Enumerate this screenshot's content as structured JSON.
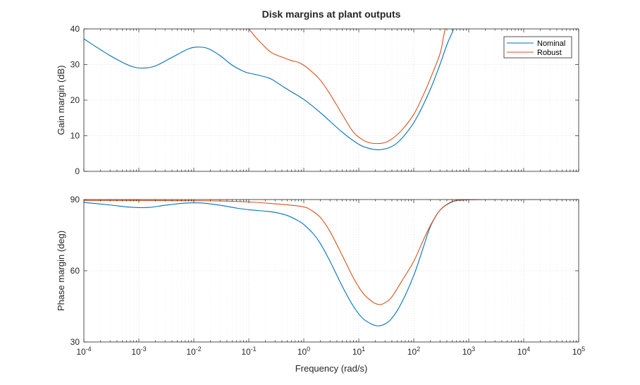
{
  "chart_data": {
    "type": "line",
    "title": "Disk margins at plant outputs",
    "xlabel": "Frequency (rad/s)",
    "xscale": "log",
    "xlim": [
      0.0001,
      100000
    ],
    "grid": true,
    "legend": {
      "location": "top-right",
      "entries": [
        "Nominal",
        "Robust"
      ]
    },
    "series_colors": {
      "Nominal": "#0072BD",
      "Robust": "#D95319"
    },
    "x_tick_labels": [
      {
        "base": "10",
        "exp": "-4"
      },
      {
        "base": "10",
        "exp": "-3"
      },
      {
        "base": "10",
        "exp": "-2"
      },
      {
        "base": "10",
        "exp": "-1"
      },
      {
        "base": "10",
        "exp": "0"
      },
      {
        "base": "10",
        "exp": "1"
      },
      {
        "base": "10",
        "exp": "2"
      },
      {
        "base": "10",
        "exp": "3"
      },
      {
        "base": "10",
        "exp": "4"
      },
      {
        "base": "10",
        "exp": "5"
      }
    ],
    "subplots": [
      {
        "ylabel": "Gain margin (dB)",
        "ylim": [
          0,
          40
        ],
        "yticks": [
          0,
          10,
          20,
          30,
          40
        ],
        "series": [
          {
            "name": "Nominal",
            "x": [
              0.0001,
              0.0003,
              0.0007,
              0.0012,
              0.002,
              0.004,
              0.008,
              0.012,
              0.018,
              0.03,
              0.05,
              0.08,
              0.1,
              0.15,
              0.25,
              0.4,
              0.6,
              1,
              2,
              5,
              10,
              15,
              20,
              25,
              35,
              50,
              80,
              120,
              200,
              300,
              400,
              500,
              600
            ],
            "y": [
              37.2,
              32.5,
              29.6,
              29.0,
              29.6,
              32.0,
              34.4,
              34.9,
              34.5,
              32.5,
              29.8,
              28.1,
              27.6,
              27.0,
              26.0,
              24.0,
              22.3,
              20.2,
              16.5,
              11.0,
              7.6,
              6.5,
              6.1,
              6.1,
              6.6,
              8.0,
              11.5,
              15.8,
              23.0,
              30.0,
              35.5,
              39.0,
              42.0
            ]
          },
          {
            "name": "Robust",
            "x": [
              0.1,
              0.15,
              0.25,
              0.4,
              0.6,
              0.8,
              1,
              1.5,
              2,
              3,
              5,
              8,
              12,
              16,
              22,
              30,
              40,
              60,
              100,
              150,
              200,
              300,
              350,
              400
            ],
            "y": [
              40.0,
              36.8,
              33.5,
              32.1,
              31.1,
              30.6,
              29.8,
              27.6,
              25.6,
              21.7,
              16.0,
              11.0,
              8.8,
              8.0,
              7.8,
              8.1,
              9.1,
              11.5,
              16.0,
              21.5,
              26.0,
              33.0,
              38.0,
              42.0
            ]
          }
        ]
      },
      {
        "ylabel": "Phase margin (deg)",
        "ylim": [
          30,
          90
        ],
        "yticks": [
          30,
          60,
          90
        ],
        "series": [
          {
            "name": "Nominal",
            "x": [
              0.0001,
              0.0003,
              0.0006,
              0.001,
              0.0016,
              0.003,
              0.006,
              0.01,
              0.015,
              0.03,
              0.06,
              0.1,
              0.2,
              0.3,
              0.5,
              0.8,
              1,
              1.5,
              2,
              3,
              5,
              8,
              12,
              18,
              22,
              25,
              30,
              40,
              60,
              100,
              150,
              200,
              300,
              500,
              800,
              2000,
              100000
            ],
            "y": [
              88.8,
              87.7,
              86.9,
              86.6,
              86.7,
              87.6,
              88.4,
              88.6,
              88.5,
              87.6,
              86.4,
              85.7,
              85.1,
              84.6,
              83.3,
              81.0,
              79.5,
              75.5,
              71.5,
              64.0,
              53.5,
              45.0,
              39.8,
              37.3,
              36.8,
              36.9,
              37.6,
              40.0,
              46.5,
              58.0,
              70.0,
              78.5,
              85.5,
              89.0,
              89.8,
              90.0,
              90.0
            ]
          },
          {
            "name": "Robust",
            "x": [
              0.0001,
              0.001,
              0.01,
              0.03,
              0.1,
              0.3,
              0.6,
              1,
              1.3,
              2,
              3,
              5,
              8,
              12,
              18,
              22,
              25,
              30,
              40,
              60,
              100,
              150,
              200,
              300,
              500,
              800,
              2000,
              100000
            ],
            "y": [
              89.6,
              89.6,
              89.5,
              89.4,
              89.0,
              88.2,
              87.6,
              86.9,
              85.8,
              82.5,
              76.5,
              66.5,
              57.0,
              50.5,
              46.8,
              45.9,
              45.8,
              46.5,
              49.0,
              55.5,
              64.0,
              73.0,
              79.0,
              85.5,
              89.2,
              89.8,
              90.0,
              90.0
            ]
          }
        ]
      }
    ]
  }
}
